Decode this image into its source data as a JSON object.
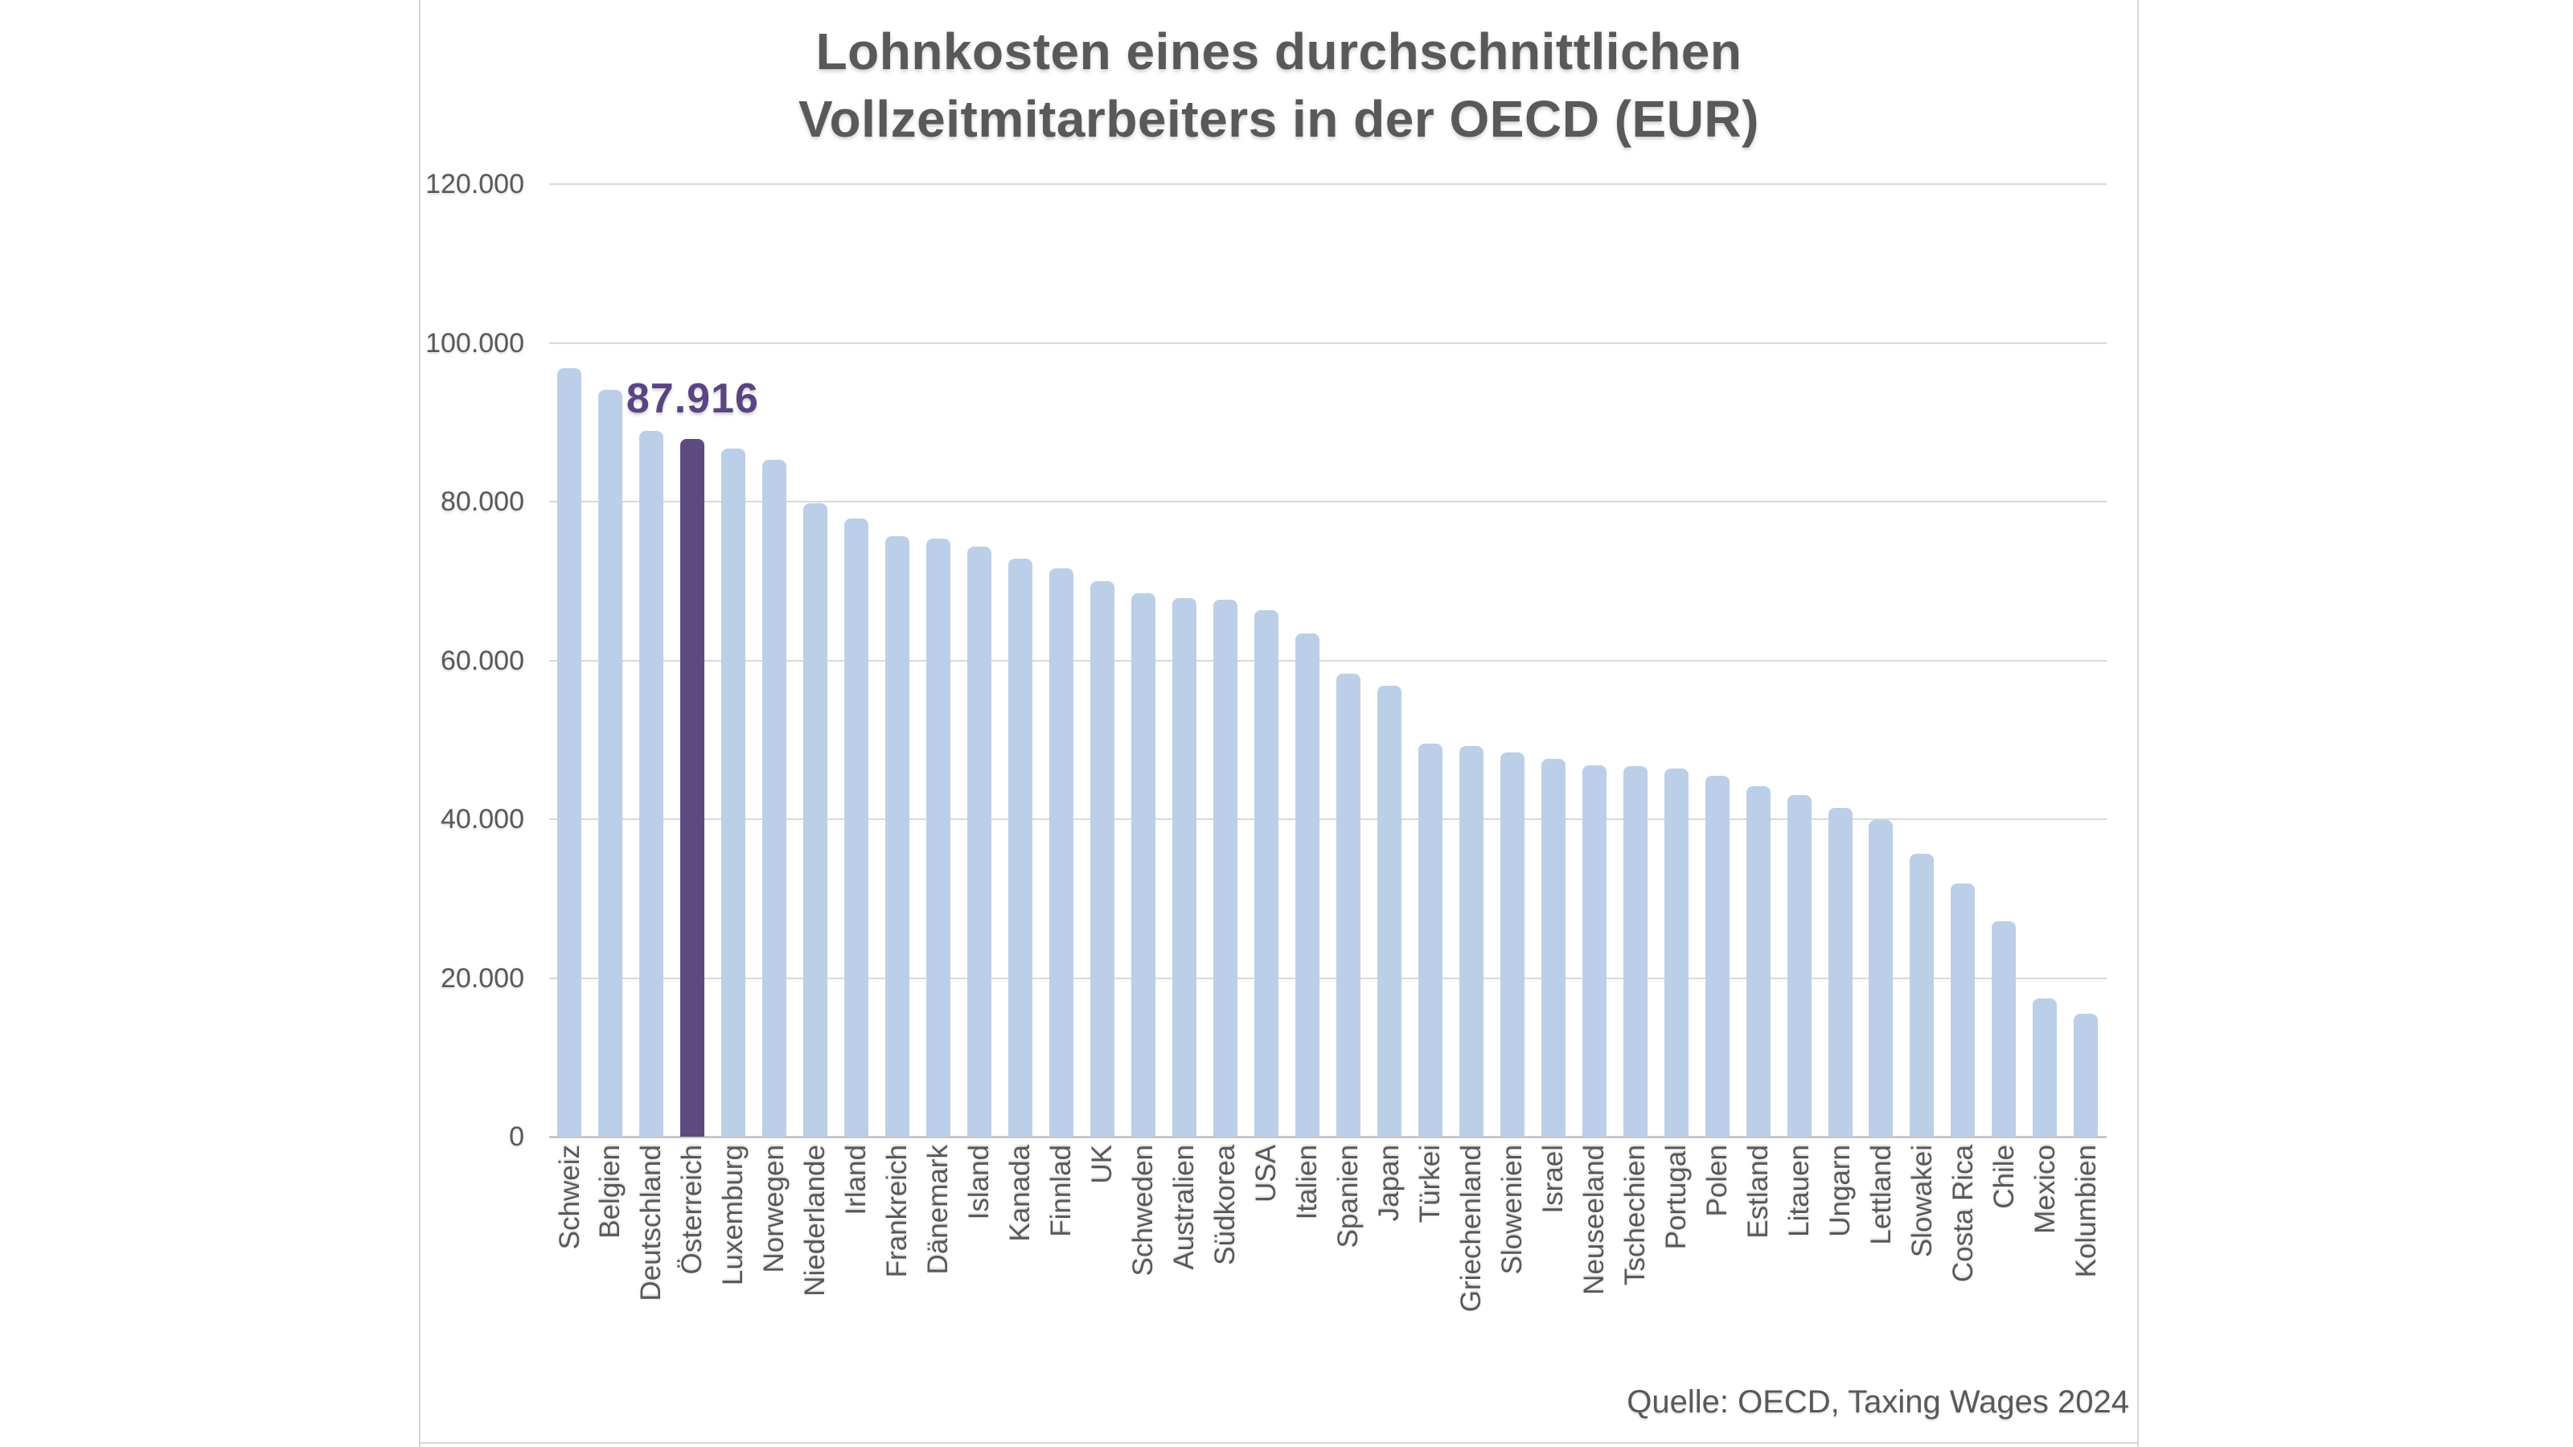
{
  "title": {
    "line1": "Lohnkosten eines durchschnittlichen",
    "line2": "Vollzeitmitarbeiters in der OECD (EUR)"
  },
  "source": "Quelle: OECD, Taxing Wages 2024",
  "highlight": {
    "country": "Österreich",
    "value_label": "87.916"
  },
  "colors": {
    "bar": "#bccfe8",
    "highlight_bar": "#5d4a7e",
    "highlight_label": "#5a4482",
    "text": "#595959",
    "gridline": "#d9d9d9"
  },
  "chart_data": {
    "type": "bar",
    "title": "Lohnkosten eines durchschnittlichen Vollzeitmitarbeiters in der OECD (EUR)",
    "xlabel": "",
    "ylabel": "",
    "ylim": [
      0,
      120000
    ],
    "ytick_step": 20000,
    "ytick_labels": [
      "0",
      "20.000",
      "40.000",
      "60.000",
      "80.000",
      "100.000",
      "120.000"
    ],
    "grid": true,
    "legend": false,
    "highlight_index": 3,
    "annotation": {
      "text": "87.916",
      "target": "Österreich"
    },
    "source": "Quelle: OECD, Taxing Wages 2024",
    "categories": [
      "Schweiz",
      "Belgien",
      "Deutschland",
      "Österreich",
      "Luxemburg",
      "Norwegen",
      "Niederlande",
      "Irland",
      "Frankreich",
      "Dänemark",
      "Island",
      "Kanada",
      "Finnlad",
      "UK",
      "Schweden",
      "Australien",
      "Südkorea",
      "USA",
      "Italien",
      "Spanien",
      "Japan",
      "Türkei",
      "Griechenland",
      "Slowenien",
      "Israel",
      "Neuseeland",
      "Tschechien",
      "Portugal",
      "Polen",
      "Estland",
      "Litauen",
      "Ungarn",
      "Lettland",
      "Slowakei",
      "Costa Rica",
      "Chile",
      "Mexico",
      "Kolumbien"
    ],
    "values": [
      96800,
      94100,
      88900,
      87916,
      86700,
      85300,
      79800,
      77900,
      75600,
      75300,
      74300,
      72800,
      71600,
      70000,
      68500,
      67900,
      67600,
      66300,
      63400,
      58300,
      56800,
      49500,
      49200,
      48400,
      47600,
      46800,
      46700,
      46400,
      45500,
      44200,
      43000,
      41400,
      39900,
      35600,
      31900,
      27100,
      17400,
      15500
    ]
  }
}
